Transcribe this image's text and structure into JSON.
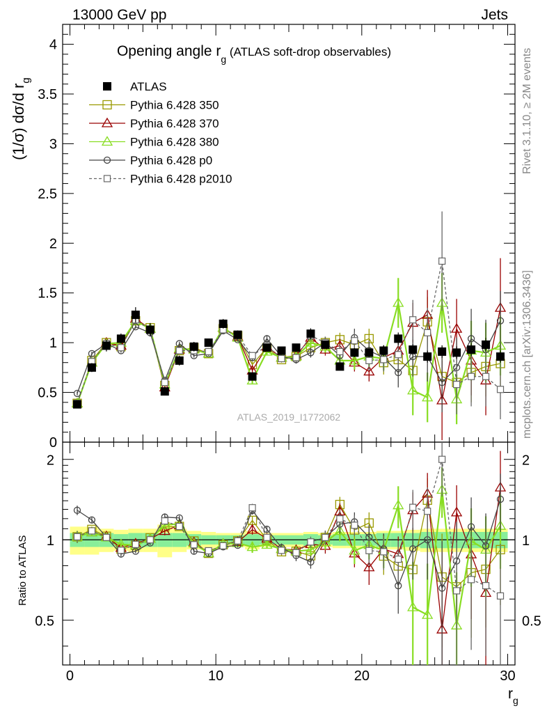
{
  "header": {
    "left": "13000 GeV pp",
    "right": "Jets"
  },
  "side_labels": {
    "rivet": "Rivet 3.1.10, ≥ 2M events",
    "mcplots": "mcplots.cern.ch [arXiv:1306.3436]"
  },
  "chart_data": {
    "type": "line",
    "title_main": "Opening angle r",
    "title_sub": "g",
    "title_suffix": " (ATLAS soft-drop observables)",
    "ylabel": "(1/σ) dσ/d r",
    "ylabel_sub": "g",
    "xlabel": "r",
    "xlabel_sub": "g",
    "analysis_id": "ATLAS_2019_I1772062",
    "ratio_ylabel": "Ratio to ATLAS",
    "xlim": [
      -0.5,
      30.5
    ],
    "ylim": [
      0,
      4.2
    ],
    "ratio_ylim": [
      0.34,
      2.32
    ],
    "x_ticks": [
      "0",
      "10",
      "20",
      "30"
    ],
    "y_ticks": [
      "0",
      "0.5",
      "1",
      "1.5",
      "2",
      "2.5",
      "3",
      "3.5",
      "4"
    ],
    "ratio_ticks": [
      "0.5",
      "1",
      "2"
    ],
    "legend_position": "top-left",
    "x": [
      0.5,
      1.5,
      2.5,
      3.5,
      4.5,
      5.5,
      6.5,
      7.5,
      8.5,
      9.5,
      10.5,
      11.5,
      12.5,
      13.5,
      14.5,
      15.5,
      16.5,
      17.5,
      18.5,
      19.5,
      20.5,
      21.5,
      22.5,
      23.5,
      24.5,
      25.5,
      26.5,
      27.5,
      28.5,
      29.5
    ],
    "data": {
      "name": "ATLAS",
      "values": [
        0.38,
        0.75,
        0.97,
        1.04,
        1.28,
        1.13,
        0.51,
        0.82,
        0.96,
        1.0,
        1.19,
        1.08,
        0.66,
        0.95,
        0.92,
        0.95,
        1.09,
        0.98,
        0.76,
        0.9,
        0.9,
        0.92,
        1.04,
        0.93,
        0.86,
        0.91,
        0.9,
        0.93,
        0.98,
        0.86
      ],
      "band": [
        0.06,
        0.06,
        0.06,
        0.05,
        0.06,
        0.06,
        0.06,
        0.06,
        0.05,
        0.04,
        0.04,
        0.04,
        0.05,
        0.04,
        0.04,
        0.04,
        0.05,
        0.04,
        0.05,
        0.05,
        0.05,
        0.06,
        0.06,
        0.06,
        0.07,
        0.07,
        0.07,
        0.07,
        0.07,
        0.07
      ],
      "band_outer": [
        0.12,
        0.12,
        0.1,
        0.09,
        0.1,
        0.1,
        0.14,
        0.1,
        0.08,
        0.07,
        0.06,
        0.06,
        0.08,
        0.06,
        0.06,
        0.06,
        0.07,
        0.06,
        0.07,
        0.07,
        0.07,
        0.08,
        0.08,
        0.09,
        0.1,
        0.1,
        0.1,
        0.1,
        0.1,
        0.1
      ]
    },
    "series": [
      {
        "name": "Pythia 6.428 350",
        "color": "#999900",
        "marker": "square",
        "dash": "",
        "values": [
          0.39,
          0.82,
          1.0,
          0.96,
          1.22,
          1.15,
          0.57,
          0.92,
          0.95,
          0.89,
          1.14,
          1.07,
          0.78,
          0.95,
          0.83,
          0.86,
          0.95,
          1.0,
          1.03,
          0.98,
          1.04,
          0.8,
          0.83,
          0.72,
          1.21,
          0.66,
          0.6,
          0.7,
          0.76,
          0.79
        ],
        "err": [
          0.02,
          0.02,
          0.02,
          0.02,
          0.02,
          0.02,
          0.02,
          0.02,
          0.02,
          0.02,
          0.02,
          0.02,
          0.03,
          0.03,
          0.03,
          0.04,
          0.05,
          0.06,
          0.07,
          0.09,
          0.1,
          0.12,
          0.15,
          0.2,
          0.25,
          0.3,
          0.3,
          0.3,
          0.3,
          0.3
        ]
      },
      {
        "name": "Pythia 6.428 370",
        "color": "#990000",
        "marker": "triangle",
        "dash": "",
        "values": [
          0.39,
          0.8,
          1.0,
          0.97,
          1.24,
          1.14,
          0.55,
          0.93,
          0.94,
          0.89,
          1.15,
          1.06,
          0.72,
          0.96,
          0.85,
          0.87,
          1.05,
          0.93,
          0.97,
          0.8,
          0.71,
          0.85,
          0.92,
          1.2,
          1.28,
          0.42,
          1.14,
          0.82,
          0.62,
          1.35
        ],
        "err": [
          0.02,
          0.02,
          0.02,
          0.02,
          0.02,
          0.02,
          0.02,
          0.02,
          0.02,
          0.02,
          0.02,
          0.02,
          0.03,
          0.03,
          0.03,
          0.04,
          0.05,
          0.06,
          0.07,
          0.09,
          0.1,
          0.12,
          0.15,
          0.2,
          0.25,
          0.4,
          0.3,
          0.35,
          0.35,
          0.5
        ]
      },
      {
        "name": "Pythia 6.428 380",
        "color": "#88dd22",
        "marker": "triangle",
        "dash": "",
        "values": [
          0.39,
          0.8,
          0.99,
          1.0,
          1.22,
          1.14,
          0.58,
          0.94,
          0.93,
          0.89,
          1.15,
          1.05,
          0.62,
          0.91,
          0.85,
          0.86,
          1.0,
          0.96,
          0.82,
          0.82,
          0.86,
          0.84,
          1.4,
          0.52,
          0.45,
          1.4,
          0.43,
          0.92,
          0.9,
          0.97
        ],
        "err": [
          0.02,
          0.02,
          0.02,
          0.02,
          0.02,
          0.02,
          0.02,
          0.02,
          0.02,
          0.02,
          0.02,
          0.02,
          0.03,
          0.03,
          0.03,
          0.04,
          0.05,
          0.06,
          0.07,
          0.09,
          0.1,
          0.12,
          0.25,
          0.25,
          0.25,
          0.3,
          0.25,
          0.3,
          0.3,
          0.3
        ]
      },
      {
        "name": "Pythia 6.428 p0",
        "color": "#444444",
        "marker": "circle",
        "dash": "",
        "values": [
          0.49,
          0.89,
          0.99,
          0.92,
          1.16,
          1.1,
          0.62,
          0.99,
          0.87,
          0.89,
          1.12,
          1.03,
          0.85,
          1.04,
          0.86,
          0.83,
          0.9,
          1.0,
          0.87,
          1.05,
          0.92,
          0.85,
          0.7,
          0.86,
          0.86,
          0.6,
          0.75,
          1.04,
          0.93,
          1.22
        ],
        "err": [
          0.02,
          0.02,
          0.02,
          0.02,
          0.02,
          0.02,
          0.02,
          0.02,
          0.02,
          0.02,
          0.02,
          0.02,
          0.03,
          0.03,
          0.03,
          0.04,
          0.05,
          0.06,
          0.07,
          0.09,
          0.1,
          0.12,
          0.15,
          0.2,
          0.25,
          0.3,
          0.3,
          0.3,
          0.3,
          0.3
        ]
      },
      {
        "name": "Pythia 6.428 p2010",
        "color": "#666666",
        "marker": "square-small",
        "dash": "4,3",
        "values": [
          0.39,
          0.81,
          0.99,
          0.95,
          1.23,
          1.13,
          0.6,
          0.92,
          0.92,
          0.91,
          1.13,
          1.07,
          0.87,
          0.97,
          0.84,
          0.85,
          1.07,
          1.0,
          0.91,
          1.02,
          0.82,
          0.83,
          0.88,
          1.23,
          1.1,
          1.82,
          0.58,
          0.66,
          0.66,
          0.53
        ],
        "err": [
          0.02,
          0.02,
          0.02,
          0.02,
          0.02,
          0.02,
          0.02,
          0.02,
          0.02,
          0.02,
          0.02,
          0.02,
          0.03,
          0.03,
          0.03,
          0.04,
          0.05,
          0.06,
          0.07,
          0.09,
          0.1,
          0.12,
          0.15,
          0.2,
          0.25,
          0.5,
          0.3,
          0.3,
          0.3,
          0.3
        ]
      }
    ]
  }
}
